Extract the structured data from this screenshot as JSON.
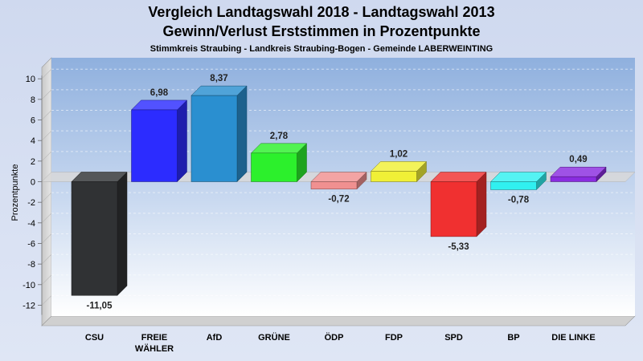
{
  "chart_data": {
    "type": "bar",
    "title": "Vergleich Landtagswahl 2018 - Landtagswahl 2013",
    "subtitle": "Gewinn/Verlust Erststimmen in Prozentpunkte",
    "subsubtitle": "Stimmkreis Straubing - Landkreis Straubing-Bogen - Gemeinde LABERWEINTING",
    "ylabel": "Prozentpunkte",
    "xlabel": "",
    "ylim": [
      -12,
      10
    ],
    "yticks": [
      10,
      8,
      6,
      4,
      2,
      0,
      -2,
      -4,
      -6,
      -8,
      -10,
      -12
    ],
    "grid": true,
    "categories": [
      [
        "CSU"
      ],
      [
        "FREIE",
        "WÄHLER"
      ],
      [
        "AfD"
      ],
      [
        "GRÜNE"
      ],
      [
        "ÖDP"
      ],
      [
        "FDP"
      ],
      [
        "SPD"
      ],
      [
        "BP"
      ],
      [
        "DIE LINKE"
      ]
    ],
    "values": [
      -11.05,
      6.98,
      8.37,
      2.78,
      -0.72,
      1.02,
      -5.33,
      -0.78,
      0.49
    ],
    "value_labels": [
      "-11,05",
      "6,98",
      "8,37",
      "2,78",
      "-0,72",
      "1,02",
      "-5,33",
      "-0,78",
      "0,49"
    ],
    "colors": [
      "#303234",
      "#2c2cff",
      "#2a8fd0",
      "#2cf02c",
      "#f09090",
      "#f0f036",
      "#f03030",
      "#30f0f0",
      "#8a2ce0"
    ]
  }
}
